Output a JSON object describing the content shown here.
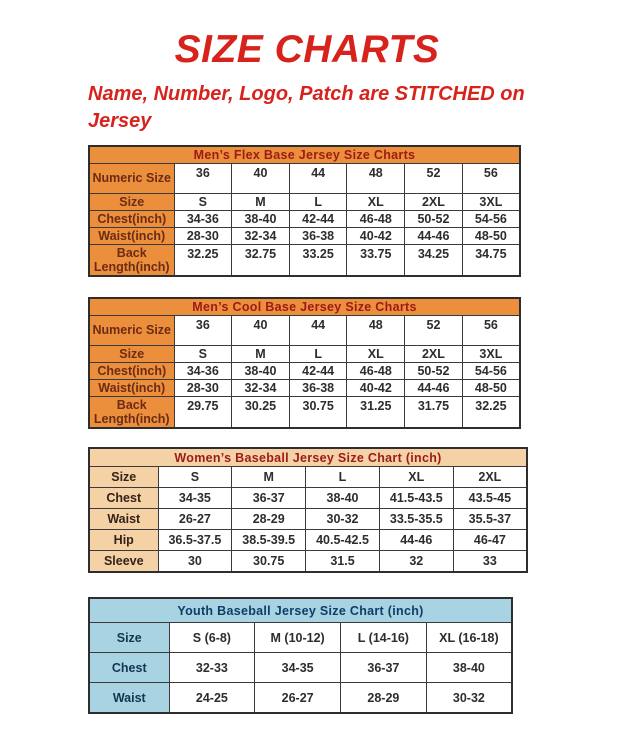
{
  "header": {
    "title": "SIZE CHARTS",
    "subtitle": "Name, Number, Logo, Patch are STITCHED on Jersey"
  },
  "colors": {
    "accent_red": "#d8231d",
    "orange_header": "#eb8f3c",
    "peach_header": "#f5d1a6",
    "blue_header": "#a7d3e3",
    "table_title_red": "#9b1b16",
    "youth_title_navy": "#0f3d66",
    "cell_text": "#2d2d2d"
  },
  "tables": [
    {
      "id": "mens-flex-base",
      "theme": "orange",
      "title": "Men’s Flex Base Jersey Size Charts",
      "rows": [
        {
          "label": "Numeric Size",
          "tall": true,
          "values": [
            "36",
            "40",
            "44",
            "48",
            "52",
            "56"
          ]
        },
        {
          "label": "Size",
          "tall": false,
          "values": [
            "S",
            "M",
            "L",
            "XL",
            "2XL",
            "3XL"
          ]
        },
        {
          "label": "Chest(inch)",
          "tall": false,
          "values": [
            "34-36",
            "38-40",
            "42-44",
            "46-48",
            "50-52",
            "54-56"
          ]
        },
        {
          "label": "Waist(inch)",
          "tall": false,
          "values": [
            "28-30",
            "32-34",
            "36-38",
            "40-42",
            "44-46",
            "48-50"
          ]
        },
        {
          "label": "Back Length(inch)",
          "tall": true,
          "values": [
            "32.25",
            "32.75",
            "33.25",
            "33.75",
            "34.25",
            "34.75"
          ]
        }
      ]
    },
    {
      "id": "mens-cool-base",
      "theme": "orange",
      "title": "Men’s Cool Base Jersey Size Charts",
      "rows": [
        {
          "label": "Numeric Size",
          "tall": true,
          "values": [
            "36",
            "40",
            "44",
            "48",
            "52",
            "56"
          ]
        },
        {
          "label": "Size",
          "tall": false,
          "values": [
            "S",
            "M",
            "L",
            "XL",
            "2XL",
            "3XL"
          ]
        },
        {
          "label": "Chest(inch)",
          "tall": false,
          "values": [
            "34-36",
            "38-40",
            "42-44",
            "46-48",
            "50-52",
            "54-56"
          ]
        },
        {
          "label": "Waist(inch)",
          "tall": false,
          "values": [
            "28-30",
            "32-34",
            "36-38",
            "40-42",
            "44-46",
            "48-50"
          ]
        },
        {
          "label": "Back Length(inch)",
          "tall": true,
          "values": [
            "29.75",
            "30.25",
            "30.75",
            "31.25",
            "31.75",
            "32.25"
          ]
        }
      ]
    },
    {
      "id": "womens-baseball",
      "theme": "peach",
      "title": "Women’s Baseball Jersey Size Chart (inch)",
      "rows": [
        {
          "label": "Size",
          "tall": false,
          "values": [
            "S",
            "M",
            "L",
            "XL",
            "2XL"
          ]
        },
        {
          "label": "Chest",
          "tall": false,
          "values": [
            "34-35",
            "36-37",
            "38-40",
            "41.5-43.5",
            "43.5-45"
          ]
        },
        {
          "label": "Waist",
          "tall": false,
          "values": [
            "26-27",
            "28-29",
            "30-32",
            "33.5-35.5",
            "35.5-37"
          ]
        },
        {
          "label": "Hip",
          "tall": false,
          "values": [
            "36.5-37.5",
            "38.5-39.5",
            "40.5-42.5",
            "44-46",
            "46-47"
          ]
        },
        {
          "label": "Sleeve",
          "tall": false,
          "values": [
            "30",
            "30.75",
            "31.5",
            "32",
            "33"
          ]
        }
      ]
    },
    {
      "id": "youth-baseball",
      "theme": "blue",
      "title": "Youth Baseball Jersey Size Chart (inch)",
      "rows": [
        {
          "label": "Size",
          "tall": false,
          "values": [
            "S (6-8)",
            "M (10-12)",
            "L (14-16)",
            "XL (16-18)"
          ]
        },
        {
          "label": "Chest",
          "tall": false,
          "values": [
            "32-33",
            "34-35",
            "36-37",
            "38-40"
          ]
        },
        {
          "label": "Waist",
          "tall": false,
          "values": [
            "24-25",
            "26-27",
            "28-29",
            "30-32"
          ]
        }
      ]
    }
  ]
}
